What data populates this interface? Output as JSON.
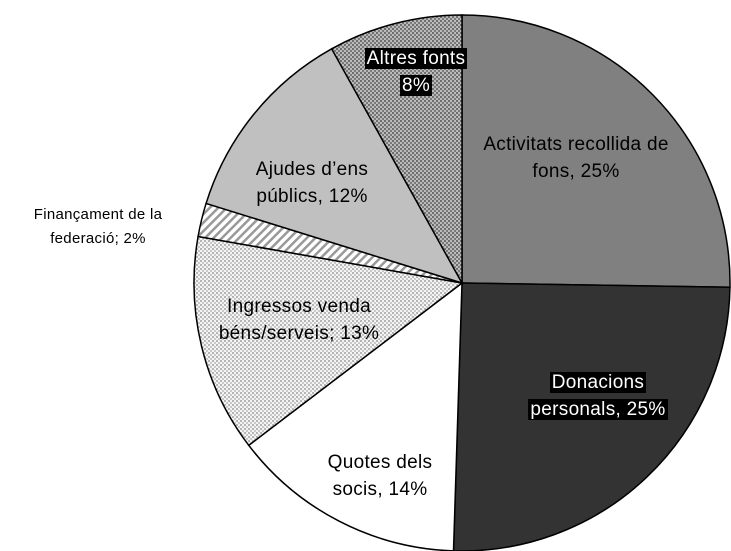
{
  "chart_data": {
    "type": "pie",
    "values": [
      25,
      25,
      14,
      13,
      2,
      12,
      8
    ],
    "value_labels": [
      "Activitats recollida de fons, 25%",
      "Donacions personals, 25%",
      "Quotes dels socis, 14%",
      "Ingressos venda béns/serveis; 13%",
      "Finançament de la federació; 2%",
      "Ajudes d’ens públics, 12%",
      "Altres fonts 8%"
    ],
    "colors": [
      "#808080",
      "#333333",
      "#ffffff",
      "#eeeeee",
      "#ffffff",
      "#c0c0c0",
      "#a0a0a0"
    ]
  }
}
